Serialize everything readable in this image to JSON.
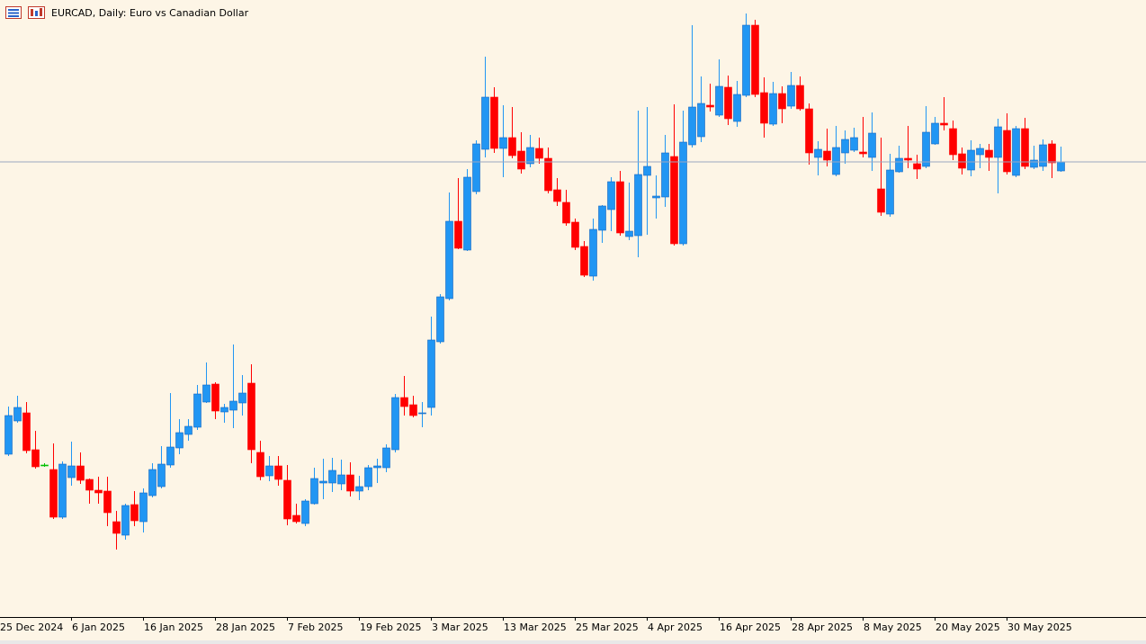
{
  "chart_data": {
    "type": "candlestick",
    "title": "EURCAD, Daily:  Euro vs Canadian Dollar",
    "categories": [
      "25 Dec 2024",
      null,
      null,
      null,
      null,
      null,
      null,
      null,
      "6 Jan 2025",
      null,
      null,
      null,
      null,
      null,
      null,
      null,
      "16 Jan 2025",
      null,
      null,
      null,
      null,
      null,
      null,
      null,
      "28 Jan 2025",
      null,
      null,
      null,
      null,
      null,
      null,
      null,
      "7 Feb 2025",
      null,
      null,
      null,
      null,
      null,
      null,
      null,
      "19 Feb 2025",
      null,
      null,
      null,
      null,
      null,
      null,
      null,
      "3 Mar 2025",
      null,
      null,
      null,
      null,
      null,
      null,
      null,
      "13 Mar 2025",
      null,
      null,
      null,
      null,
      null,
      null,
      null,
      "25 Mar 2025",
      null,
      null,
      null,
      null,
      null,
      null,
      null,
      "4 Apr 2025",
      null,
      null,
      null,
      null,
      null,
      null,
      null,
      "16 Apr 2025",
      null,
      null,
      null,
      null,
      null,
      null,
      null,
      "28 Apr 2025",
      null,
      null,
      null,
      null,
      null,
      null,
      null,
      "8 May 2025",
      null,
      null,
      null,
      null,
      null,
      null,
      null,
      "20 May 2025",
      null,
      null,
      null,
      null,
      null,
      null,
      null,
      "30 May 2025",
      null,
      null,
      null,
      null,
      null
    ],
    "open": [
      1.509,
      1.5164,
      1.5182,
      1.51,
      1.5066,
      1.5056,
      1.495,
      1.5038,
      1.5064,
      1.5034,
      1.501,
      1.5008,
      1.494,
      1.491,
      1.4978,
      1.494,
      1.4998,
      1.5018,
      1.5066,
      1.5104,
      1.5134,
      1.515,
      1.5206,
      1.5246,
      1.5184,
      1.5188,
      1.5204,
      1.5248,
      1.5094,
      1.5042,
      1.5064,
      1.5032,
      1.4954,
      1.4936,
      1.498,
      1.5026,
      1.5026,
      1.5024,
      1.5044,
      1.5008,
      1.5018,
      1.506,
      1.506,
      1.51,
      1.5216,
      1.52,
      1.518,
      1.5194,
      1.534,
      1.5436,
      1.5608,
      1.5544,
      1.5674,
      1.5768,
      1.5884,
      1.577,
      1.5794,
      1.5764,
      1.5736,
      1.577,
      1.5748,
      1.5678,
      1.565,
      1.5606,
      1.5552,
      1.5486,
      1.5588,
      1.5634,
      1.5696,
      1.5574,
      1.5576,
      1.571,
      1.566,
      1.5662,
      1.5752,
      1.5558,
      1.5778,
      1.5796,
      1.5866,
      1.5844,
      1.5906,
      1.583,
      1.5888,
      1.6044,
      1.5894,
      1.5824,
      1.5892,
      1.5864,
      1.591,
      1.5858,
      1.575,
      1.5764,
      1.5712,
      1.576,
      1.5766,
      1.5762,
      1.575,
      1.568,
      1.5624,
      1.5718,
      1.5748,
      1.5736,
      1.573,
      1.578,
      1.5826,
      1.5814,
      1.5758,
      1.5722,
      1.5756,
      1.5766,
      1.575,
      1.581,
      1.571,
      1.5814,
      1.5728,
      1.573,
      1.578,
      1.572
    ],
    "high": [
      1.5196,
      1.522,
      1.5206,
      1.5142,
      1.507,
      1.5114,
      1.5074,
      1.5118,
      1.5094,
      1.5036,
      1.504,
      1.504,
      1.4964,
      1.498,
      1.5008,
      1.5014,
      1.507,
      1.5108,
      1.5226,
      1.5168,
      1.5168,
      1.5244,
      1.5294,
      1.525,
      1.5202,
      1.5334,
      1.5266,
      1.529,
      1.512,
      1.5086,
      1.5086,
      1.5066,
      1.498,
      1.499,
      1.506,
      1.508,
      1.5082,
      1.5078,
      1.5072,
      1.5042,
      1.5066,
      1.508,
      1.5112,
      1.5224,
      1.5264,
      1.522,
      1.5206,
      1.5396,
      1.5446,
      1.5672,
      1.5704,
      1.5724,
      1.5788,
      1.5974,
      1.5906,
      1.5866,
      1.5862,
      1.5806,
      1.58,
      1.5794,
      1.5772,
      1.5704,
      1.5678,
      1.5614,
      1.5564,
      1.5614,
      1.5644,
      1.5706,
      1.572,
      1.5694,
      1.5854,
      1.5862,
      1.571,
      1.58,
      1.5868,
      1.5854,
      1.6044,
      1.593,
      1.5914,
      1.5968,
      1.5932,
      1.592,
      1.607,
      1.6056,
      1.5928,
      1.5918,
      1.5908,
      1.594,
      1.593,
      1.587,
      1.5786,
      1.5814,
      1.582,
      1.581,
      1.5816,
      1.584,
      1.585,
      1.5794,
      1.5758,
      1.5776,
      1.582,
      1.5756,
      1.5864,
      1.584,
      1.5884,
      1.5832,
      1.5772,
      1.5788,
      1.578,
      1.578,
      1.5836,
      1.5848,
      1.582,
      1.5838,
      1.5776,
      1.579,
      1.5788,
      1.5774
    ],
    "low": [
      1.5086,
      1.516,
      1.5092,
      1.5058,
      1.5062,
      1.4946,
      1.4946,
      1.502,
      1.5024,
      1.498,
      1.498,
      1.493,
      1.4878,
      1.49,
      1.493,
      1.4916,
      1.4994,
      1.5014,
      1.506,
      1.509,
      1.512,
      1.5144,
      1.5204,
      1.5168,
      1.516,
      1.5148,
      1.5176,
      1.507,
      1.5032,
      1.503,
      1.502,
      1.4932,
      1.4936,
      1.493,
      1.4978,
      1.499,
      1.5006,
      1.501,
      1.4996,
      1.4988,
      1.501,
      1.5026,
      1.505,
      1.5094,
      1.5176,
      1.5172,
      1.515,
      1.5176,
      1.5336,
      1.5432,
      1.5546,
      1.5542,
      1.5668,
      1.575,
      1.576,
      1.5706,
      1.5748,
      1.5714,
      1.5728,
      1.5736,
      1.567,
      1.5642,
      1.5598,
      1.5544,
      1.5484,
      1.5476,
      1.556,
      1.5586,
      1.5576,
      1.5566,
      1.5528,
      1.5578,
      1.5614,
      1.564,
      1.5554,
      1.5554,
      1.5772,
      1.5784,
      1.5852,
      1.584,
      1.5822,
      1.5818,
      1.5884,
      1.5884,
      1.5794,
      1.582,
      1.5826,
      1.5858,
      1.5854,
      1.5734,
      1.571,
      1.573,
      1.5708,
      1.5736,
      1.5762,
      1.575,
      1.572,
      1.562,
      1.5618,
      1.5716,
      1.5726,
      1.5702,
      1.5726,
      1.5778,
      1.581,
      1.5744,
      1.5712,
      1.5708,
      1.5726,
      1.572,
      1.567,
      1.5712,
      1.5706,
      1.5724,
      1.5724,
      1.572,
      1.5704,
      1.5718
    ],
    "close": [
      1.5176,
      1.5194,
      1.5098,
      1.5062,
      1.5066,
      1.495,
      1.5068,
      1.5064,
      1.5032,
      1.501,
      1.5004,
      1.496,
      1.4914,
      1.4976,
      1.4942,
      1.5004,
      1.5056,
      1.5068,
      1.5106,
      1.5138,
      1.5152,
      1.5224,
      1.5244,
      1.5186,
      1.5194,
      1.5208,
      1.5226,
      1.51,
      1.504,
      1.5064,
      1.5034,
      1.4946,
      1.494,
      1.4986,
      1.5036,
      1.503,
      1.5054,
      1.5044,
      1.5008,
      1.5018,
      1.506,
      1.5064,
      1.5104,
      1.5216,
      1.5196,
      1.5176,
      1.5182,
      1.5344,
      1.544,
      1.5608,
      1.5548,
      1.5706,
      1.578,
      1.5884,
      1.577,
      1.5794,
      1.5754,
      1.5724,
      1.5772,
      1.5748,
      1.5676,
      1.5652,
      1.5604,
      1.555,
      1.5488,
      1.559,
      1.5642,
      1.5696,
      1.5582,
      1.5586,
      1.5712,
      1.573,
      1.5664,
      1.576,
      1.5558,
      1.5784,
      1.5862,
      1.587,
      1.5862,
      1.5908,
      1.5836,
      1.589,
      1.6044,
      1.589,
      1.5826,
      1.5892,
      1.5858,
      1.591,
      1.5858,
      1.576,
      1.5768,
      1.5744,
      1.5772,
      1.579,
      1.5794,
      1.5758,
      1.5804,
      1.5628,
      1.5722,
      1.5748,
      1.5744,
      1.5724,
      1.5806,
      1.5826,
      1.5822,
      1.5756,
      1.5726,
      1.5766,
      1.577,
      1.575,
      1.5818,
      1.5718,
      1.5814,
      1.573,
      1.5744,
      1.5778,
      1.5738,
      1.574
    ],
    "up_color": "#2196f3",
    "down_color": "#ff0000",
    "doji_color": "#00c000",
    "current_price": 1.574,
    "current_price_color": "#9aa7c0",
    "ylim": [
      1.4728,
      1.61
    ]
  }
}
